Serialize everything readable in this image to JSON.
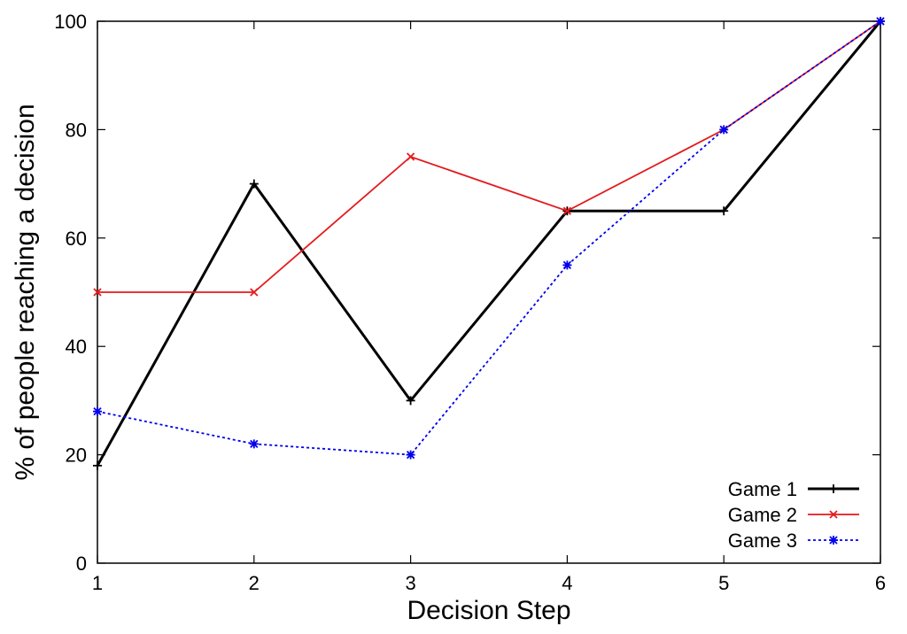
{
  "chart_data": {
    "type": "line",
    "title": "",
    "xlabel": "Decision Step",
    "ylabel": "% of people reaching a decision",
    "x": [
      1,
      2,
      3,
      4,
      5,
      6
    ],
    "xlim": [
      1,
      6
    ],
    "ylim": [
      0,
      100
    ],
    "xticks": [
      "1",
      "2",
      "3",
      "4",
      "5",
      "6"
    ],
    "yticks": [
      "0",
      "20",
      "40",
      "60",
      "80",
      "100"
    ],
    "grid": false,
    "legend_position": "bottom-right",
    "series": [
      {
        "name": "Game 1",
        "values": [
          18,
          70,
          30,
          65,
          65,
          100
        ],
        "color": "#000000",
        "marker": "plus",
        "dash": "solid"
      },
      {
        "name": "Game 2",
        "values": [
          50,
          50,
          75,
          65,
          80,
          100
        ],
        "color": "#e41a1c",
        "marker": "cross",
        "dash": "solid"
      },
      {
        "name": "Game 3",
        "values": [
          28,
          22,
          20,
          55,
          80,
          100
        ],
        "color": "#0000ee",
        "marker": "star",
        "dash": "dotted"
      }
    ]
  }
}
